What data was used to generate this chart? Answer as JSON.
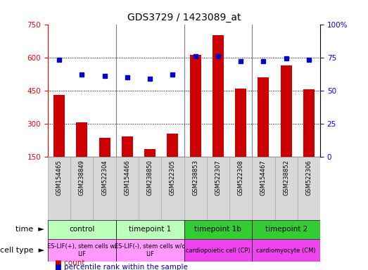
{
  "title": "GDS3729 / 1423089_at",
  "samples": [
    "GSM154465",
    "GSM238849",
    "GSM522304",
    "GSM154466",
    "GSM238850",
    "GSM522305",
    "GSM238853",
    "GSM522307",
    "GSM522308",
    "GSM154467",
    "GSM238852",
    "GSM522306"
  ],
  "counts": [
    430,
    305,
    235,
    240,
    185,
    255,
    610,
    700,
    460,
    510,
    565,
    455
  ],
  "percentile_ranks": [
    73,
    62,
    61,
    60,
    59,
    62,
    76,
    76,
    72,
    72,
    74,
    73
  ],
  "ylim_left": [
    150,
    750
  ],
  "ylim_right": [
    0,
    100
  ],
  "yticks_left": [
    150,
    300,
    450,
    600,
    750
  ],
  "yticks_right": [
    0,
    25,
    50,
    75,
    100
  ],
  "bar_color": "#cc0000",
  "dot_color": "#0000cc",
  "groups": [
    {
      "label": "control",
      "start": 0,
      "end": 3,
      "time_color": "#bbffbb",
      "cell_color": "#ff99ff",
      "cell_label": "ES-LIF(+), stem cells w/\nLIF"
    },
    {
      "label": "timepoint 1",
      "start": 3,
      "end": 6,
      "time_color": "#bbffbb",
      "cell_color": "#ff99ff",
      "cell_label": "ES-LIF(-), stem cells w/o\nLIF"
    },
    {
      "label": "timepoint 1b",
      "start": 6,
      "end": 9,
      "time_color": "#33cc33",
      "cell_color": "#ee44ee",
      "cell_label": "cardiopoietic cell (CP)"
    },
    {
      "label": "timepoint 2",
      "start": 9,
      "end": 12,
      "time_color": "#33cc33",
      "cell_color": "#ee44ee",
      "cell_label": "cardiomyocyte (CM)"
    }
  ],
  "legend_count_label": "count",
  "legend_pct_label": "percentile rank within the sample",
  "xtick_bg_color": "#d8d8d8",
  "xtick_border_color": "#aaaaaa"
}
